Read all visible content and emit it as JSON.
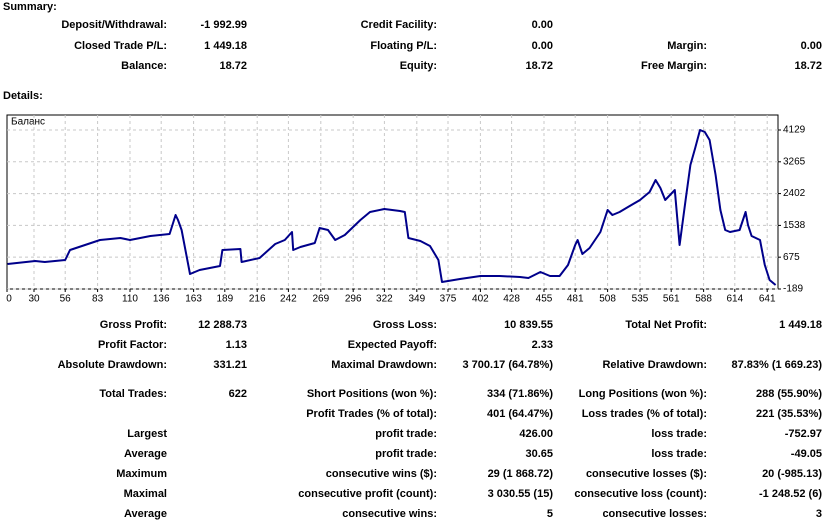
{
  "summary": {
    "title": "Summary:",
    "rows": [
      {
        "a": {
          "label": "Deposit/Withdrawal:",
          "value": "-1 992.99"
        },
        "b": {
          "label": "Credit Facility:",
          "value": "0.00"
        }
      },
      {
        "a": {
          "label": "Closed Trade P/L:",
          "value": "1 449.18"
        },
        "b": {
          "label": "Floating P/L:",
          "value": "0.00"
        },
        "c": {
          "label": "Margin:",
          "value": "0.00"
        }
      },
      {
        "a": {
          "label": "Balance:",
          "value": "18.72"
        },
        "b": {
          "label": "Equity:",
          "value": "18.72"
        },
        "c": {
          "label": "Free Margin:",
          "value": "18.72"
        }
      }
    ]
  },
  "details": {
    "title": "Details:",
    "rows": [
      {
        "a": {
          "label": "Gross Profit:",
          "value": "12 288.73"
        },
        "b": {
          "label": "Gross Loss:",
          "value": "10 839.55"
        },
        "c": {
          "label": "Total Net Profit:",
          "value": "1 449.18"
        }
      },
      {
        "a": {
          "label": "Profit Factor:",
          "value": "1.13"
        },
        "b": {
          "label": "Expected Payoff:",
          "value": "2.33"
        }
      },
      {
        "a": {
          "label": "Absolute Drawdown:",
          "value": "331.21"
        },
        "b": {
          "label": "Maximal Drawdown:",
          "value": "3 700.17 (64.78%)"
        },
        "c": {
          "label": "Relative Drawdown:",
          "value": "87.83% (1 669.23)"
        }
      },
      {
        "a": {
          "label": "Total Trades:",
          "value": "622"
        },
        "b": {
          "label": "Short Positions (won %):",
          "value": "334 (71.86%)"
        },
        "c": {
          "label": "Long Positions (won %):",
          "value": "288 (55.90%)"
        }
      },
      {
        "b": {
          "label": "Profit Trades (% of total):",
          "value": "401 (64.47%)"
        },
        "c": {
          "label": "Loss trades (% of total):",
          "value": "221 (35.53%)"
        }
      },
      {
        "a": {
          "label": "Largest"
        },
        "b": {
          "label": "profit trade:",
          "value": "426.00"
        },
        "c": {
          "label": "loss trade:",
          "value": "-752.97"
        }
      },
      {
        "a": {
          "label": "Average"
        },
        "b": {
          "label": "profit trade:",
          "value": "30.65"
        },
        "c": {
          "label": "loss trade:",
          "value": "-49.05"
        }
      },
      {
        "a": {
          "label": "Maximum"
        },
        "b": {
          "label": "consecutive wins ($):",
          "value": "29 (1 868.72)"
        },
        "c": {
          "label": "consecutive losses ($):",
          "value": "20 (-985.13)"
        }
      },
      {
        "a": {
          "label": "Maximal"
        },
        "b": {
          "label": "consecutive profit (count):",
          "value": "3 030.55 (15)"
        },
        "c": {
          "label": "consecutive loss (count):",
          "value": "-1 248.52 (6)"
        }
      },
      {
        "a": {
          "label": "Average"
        },
        "b": {
          "label": "consecutive wins:",
          "value": "5"
        },
        "c": {
          "label": "consecutive losses:",
          "value": "3"
        }
      }
    ]
  },
  "chart_data": {
    "type": "line",
    "title": "Баланс",
    "xlim": [
      7.5,
      650
    ],
    "ylim": [
      -189,
      4536
    ],
    "xticks": [
      0,
      30,
      56,
      83,
      110,
      136,
      163,
      189,
      216,
      242,
      269,
      296,
      322,
      349,
      375,
      402,
      428,
      455,
      481,
      508,
      535,
      561,
      588,
      614,
      641
    ],
    "yticks": [
      -189,
      675,
      1538,
      2402,
      3265,
      4129
    ],
    "grid": true,
    "series": [
      {
        "color": "#00008b",
        "x": [
          8,
          31,
          39,
          56,
          60,
          85,
          102,
          110,
          127,
          143,
          148,
          150,
          153,
          160,
          168,
          185,
          187,
          202,
          203,
          218,
          231,
          239,
          245,
          246,
          252,
          264,
          268,
          275,
          281,
          289,
          302,
          310,
          322,
          335,
          339,
          342,
          352,
          360,
          367,
          370,
          385,
          402,
          418,
          435,
          442,
          452,
          460,
          468,
          475,
          478,
          481,
          483,
          487,
          493,
          502,
          508,
          512,
          518,
          525,
          535,
          543,
          548,
          552,
          556,
          564,
          568,
          573,
          577,
          581,
          585,
          589,
          593,
          598,
          602,
          606,
          610,
          618,
          623,
          625,
          628,
          635,
          639,
          643,
          648
        ],
        "values": [
          490,
          571,
          544,
          599,
          870,
          1142,
          1196,
          1142,
          1250,
          1305,
          1821,
          1685,
          1413,
          218,
          327,
          436,
          870,
          897,
          544,
          653,
          1033,
          1142,
          1359,
          870,
          952,
          1060,
          1468,
          1413,
          1142,
          1278,
          1685,
          1902,
          1984,
          1929,
          1902,
          1196,
          1115,
          979,
          599,
          1,
          83,
          164,
          164,
          137,
          110,
          273,
          164,
          164,
          463,
          734,
          1006,
          1142,
          762,
          925,
          1359,
          1957,
          1821,
          1902,
          2038,
          2228,
          2446,
          2771,
          2554,
          2228,
          2500,
          1006,
          2228,
          3179,
          3641,
          4130,
          4075,
          3858,
          2907,
          1957,
          1413,
          1359,
          1413,
          1902,
          1549,
          1250,
          1142,
          463,
          55,
          -80
        ]
      }
    ]
  }
}
